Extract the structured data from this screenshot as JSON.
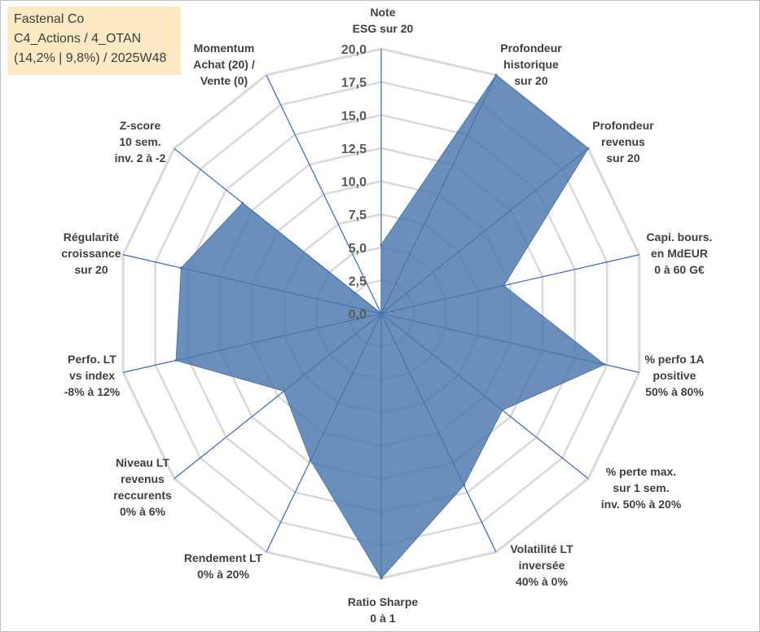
{
  "info": {
    "company": "Fastenal Co",
    "category": "C4_Actions / 4_OTAN",
    "stats": "(14,2% | 9,8%) / 2025W48"
  },
  "chart_data": {
    "type": "radar",
    "title": "",
    "range": [
      0,
      20
    ],
    "tick_step": 2.5,
    "ticks": [
      "0,0",
      "2,5",
      "5,0",
      "7,5",
      "10,0",
      "12,5",
      "15,0",
      "17,5",
      "20,0"
    ],
    "grid": true,
    "fill_color": "#4a76ad",
    "axes": [
      {
        "label": [
          "Note",
          "ESG sur 20"
        ],
        "value": 5.2
      },
      {
        "label": [
          "Profondeur",
          "historique",
          "sur 20"
        ],
        "value": 20
      },
      {
        "label": [
          "Profondeur",
          "revenus",
          "sur 20"
        ],
        "value": 20
      },
      {
        "label": [
          "Capi. bours.",
          "en MdEUR",
          "0 à 60 G€"
        ],
        "value": 9.5
      },
      {
        "label": [
          "% perfo 1A",
          "positive",
          "50% à 80%"
        ],
        "value": 17.3
      },
      {
        "label": [
          "% perte max.",
          "sur 1 sem.",
          "inv. 50% à 20%"
        ],
        "value": 11.7
      },
      {
        "label": [
          "Volatilité LT",
          "inversée",
          "40% à 0%"
        ],
        "value": 14.4
      },
      {
        "label": [
          "Ratio Sharpe",
          "0 à 1"
        ],
        "value": 20
      },
      {
        "label": [
          "Rendement LT",
          "0% à 20%"
        ],
        "value": 12.3
      },
      {
        "label": [
          "Niveau LT",
          "revenus",
          "reccurents",
          "0% à 6%"
        ],
        "value": 9.4
      },
      {
        "label": [
          "Perfo. LT",
          "vs index",
          "-8% à 12%"
        ],
        "value": 15.9
      },
      {
        "label": [
          "Régularité",
          "croissance",
          "sur 20"
        ],
        "value": 15.5
      },
      {
        "label": [
          "Z-score",
          "10 sem.",
          "inv. 2 à -2"
        ],
        "value": 13.4
      },
      {
        "label": [
          "Momentum",
          "Achat (20) /",
          "Vente (0)"
        ],
        "value": 0
      }
    ]
  }
}
